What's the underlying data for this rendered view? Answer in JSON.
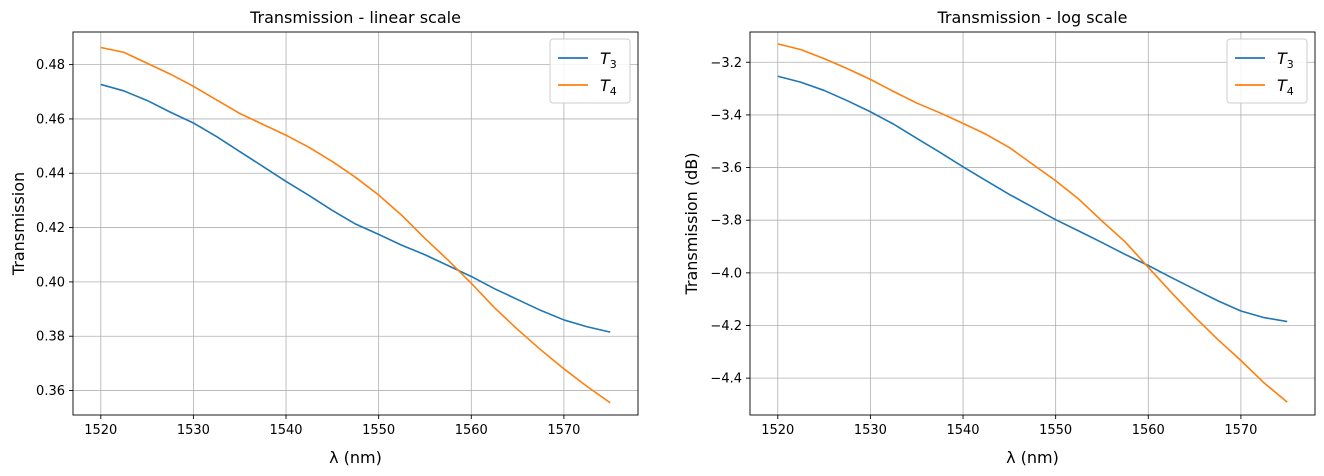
{
  "chart_data": [
    {
      "type": "line",
      "title": "Transmission - linear scale",
      "xlabel": "λ (nm)",
      "ylabel": "Transmission",
      "xlim": [
        1517,
        1578
      ],
      "ylim": [
        0.351,
        0.492
      ],
      "xticks": [
        1520,
        1530,
        1540,
        1550,
        1560,
        1570
      ],
      "yticks": [
        0.36,
        0.38,
        0.4,
        0.42,
        0.44,
        0.46,
        0.48
      ],
      "ytick_decimals": 2,
      "grid": true,
      "legend_position": "top-right",
      "x": [
        1520,
        1522.5,
        1525,
        1527.5,
        1530,
        1532.5,
        1535,
        1537.5,
        1540,
        1542.5,
        1545,
        1547.5,
        1550,
        1552.5,
        1555,
        1557.5,
        1560,
        1562.5,
        1565,
        1567.5,
        1570,
        1572.5,
        1575
      ],
      "series": [
        {
          "name": "T",
          "sub": "3",
          "color": "#1f77b4",
          "values": [
            0.4727,
            0.4703,
            0.4668,
            0.4625,
            0.4585,
            0.4535,
            0.448,
            0.4425,
            0.437,
            0.4318,
            0.4263,
            0.4213,
            0.4175,
            0.4135,
            0.41,
            0.406,
            0.402,
            0.3975,
            0.3935,
            0.3895,
            0.386,
            0.3835,
            0.3815
          ]
        },
        {
          "name": "T",
          "sub": "4",
          "color": "#ff7f0e",
          "values": [
            0.4863,
            0.4845,
            0.4805,
            0.4765,
            0.472,
            0.467,
            0.462,
            0.458,
            0.454,
            0.4495,
            0.4443,
            0.4385,
            0.432,
            0.4245,
            0.416,
            0.408,
            0.3995,
            0.3905,
            0.3825,
            0.375,
            0.368,
            0.3615,
            0.3555
          ]
        }
      ]
    },
    {
      "type": "line",
      "title": "Transmission - log scale",
      "xlabel": "λ (nm)",
      "ylabel": "Transmission (dB)",
      "xlim": [
        1517,
        1578
      ],
      "ylim": [
        -4.54,
        -3.085
      ],
      "xticks": [
        1520,
        1530,
        1540,
        1550,
        1560,
        1570
      ],
      "yticks": [
        -4.4,
        -4.2,
        -4.0,
        -3.8,
        -3.6,
        -3.4,
        -3.2
      ],
      "ytick_decimals": 1,
      "grid": true,
      "legend_position": "top-right",
      "x": [
        1520,
        1522.5,
        1525,
        1527.5,
        1530,
        1532.5,
        1535,
        1537.5,
        1540,
        1542.5,
        1545,
        1547.5,
        1550,
        1552.5,
        1555,
        1557.5,
        1560,
        1562.5,
        1565,
        1567.5,
        1570,
        1572.5,
        1575
      ],
      "series": [
        {
          "name": "T",
          "sub": "3",
          "color": "#1f77b4",
          "values": [
            -3.253,
            -3.276,
            -3.307,
            -3.346,
            -3.388,
            -3.435,
            -3.489,
            -3.542,
            -3.597,
            -3.65,
            -3.702,
            -3.75,
            -3.798,
            -3.841,
            -3.885,
            -3.93,
            -3.972,
            -4.018,
            -4.062,
            -4.106,
            -4.145,
            -4.17,
            -4.185
          ]
        },
        {
          "name": "T",
          "sub": "4",
          "color": "#ff7f0e",
          "values": [
            -3.13,
            -3.152,
            -3.186,
            -3.224,
            -3.265,
            -3.311,
            -3.355,
            -3.392,
            -3.432,
            -3.474,
            -3.524,
            -3.587,
            -3.65,
            -3.72,
            -3.803,
            -3.882,
            -3.979,
            -4.075,
            -4.167,
            -4.253,
            -4.333,
            -4.418,
            -4.491
          ]
        }
      ]
    }
  ]
}
